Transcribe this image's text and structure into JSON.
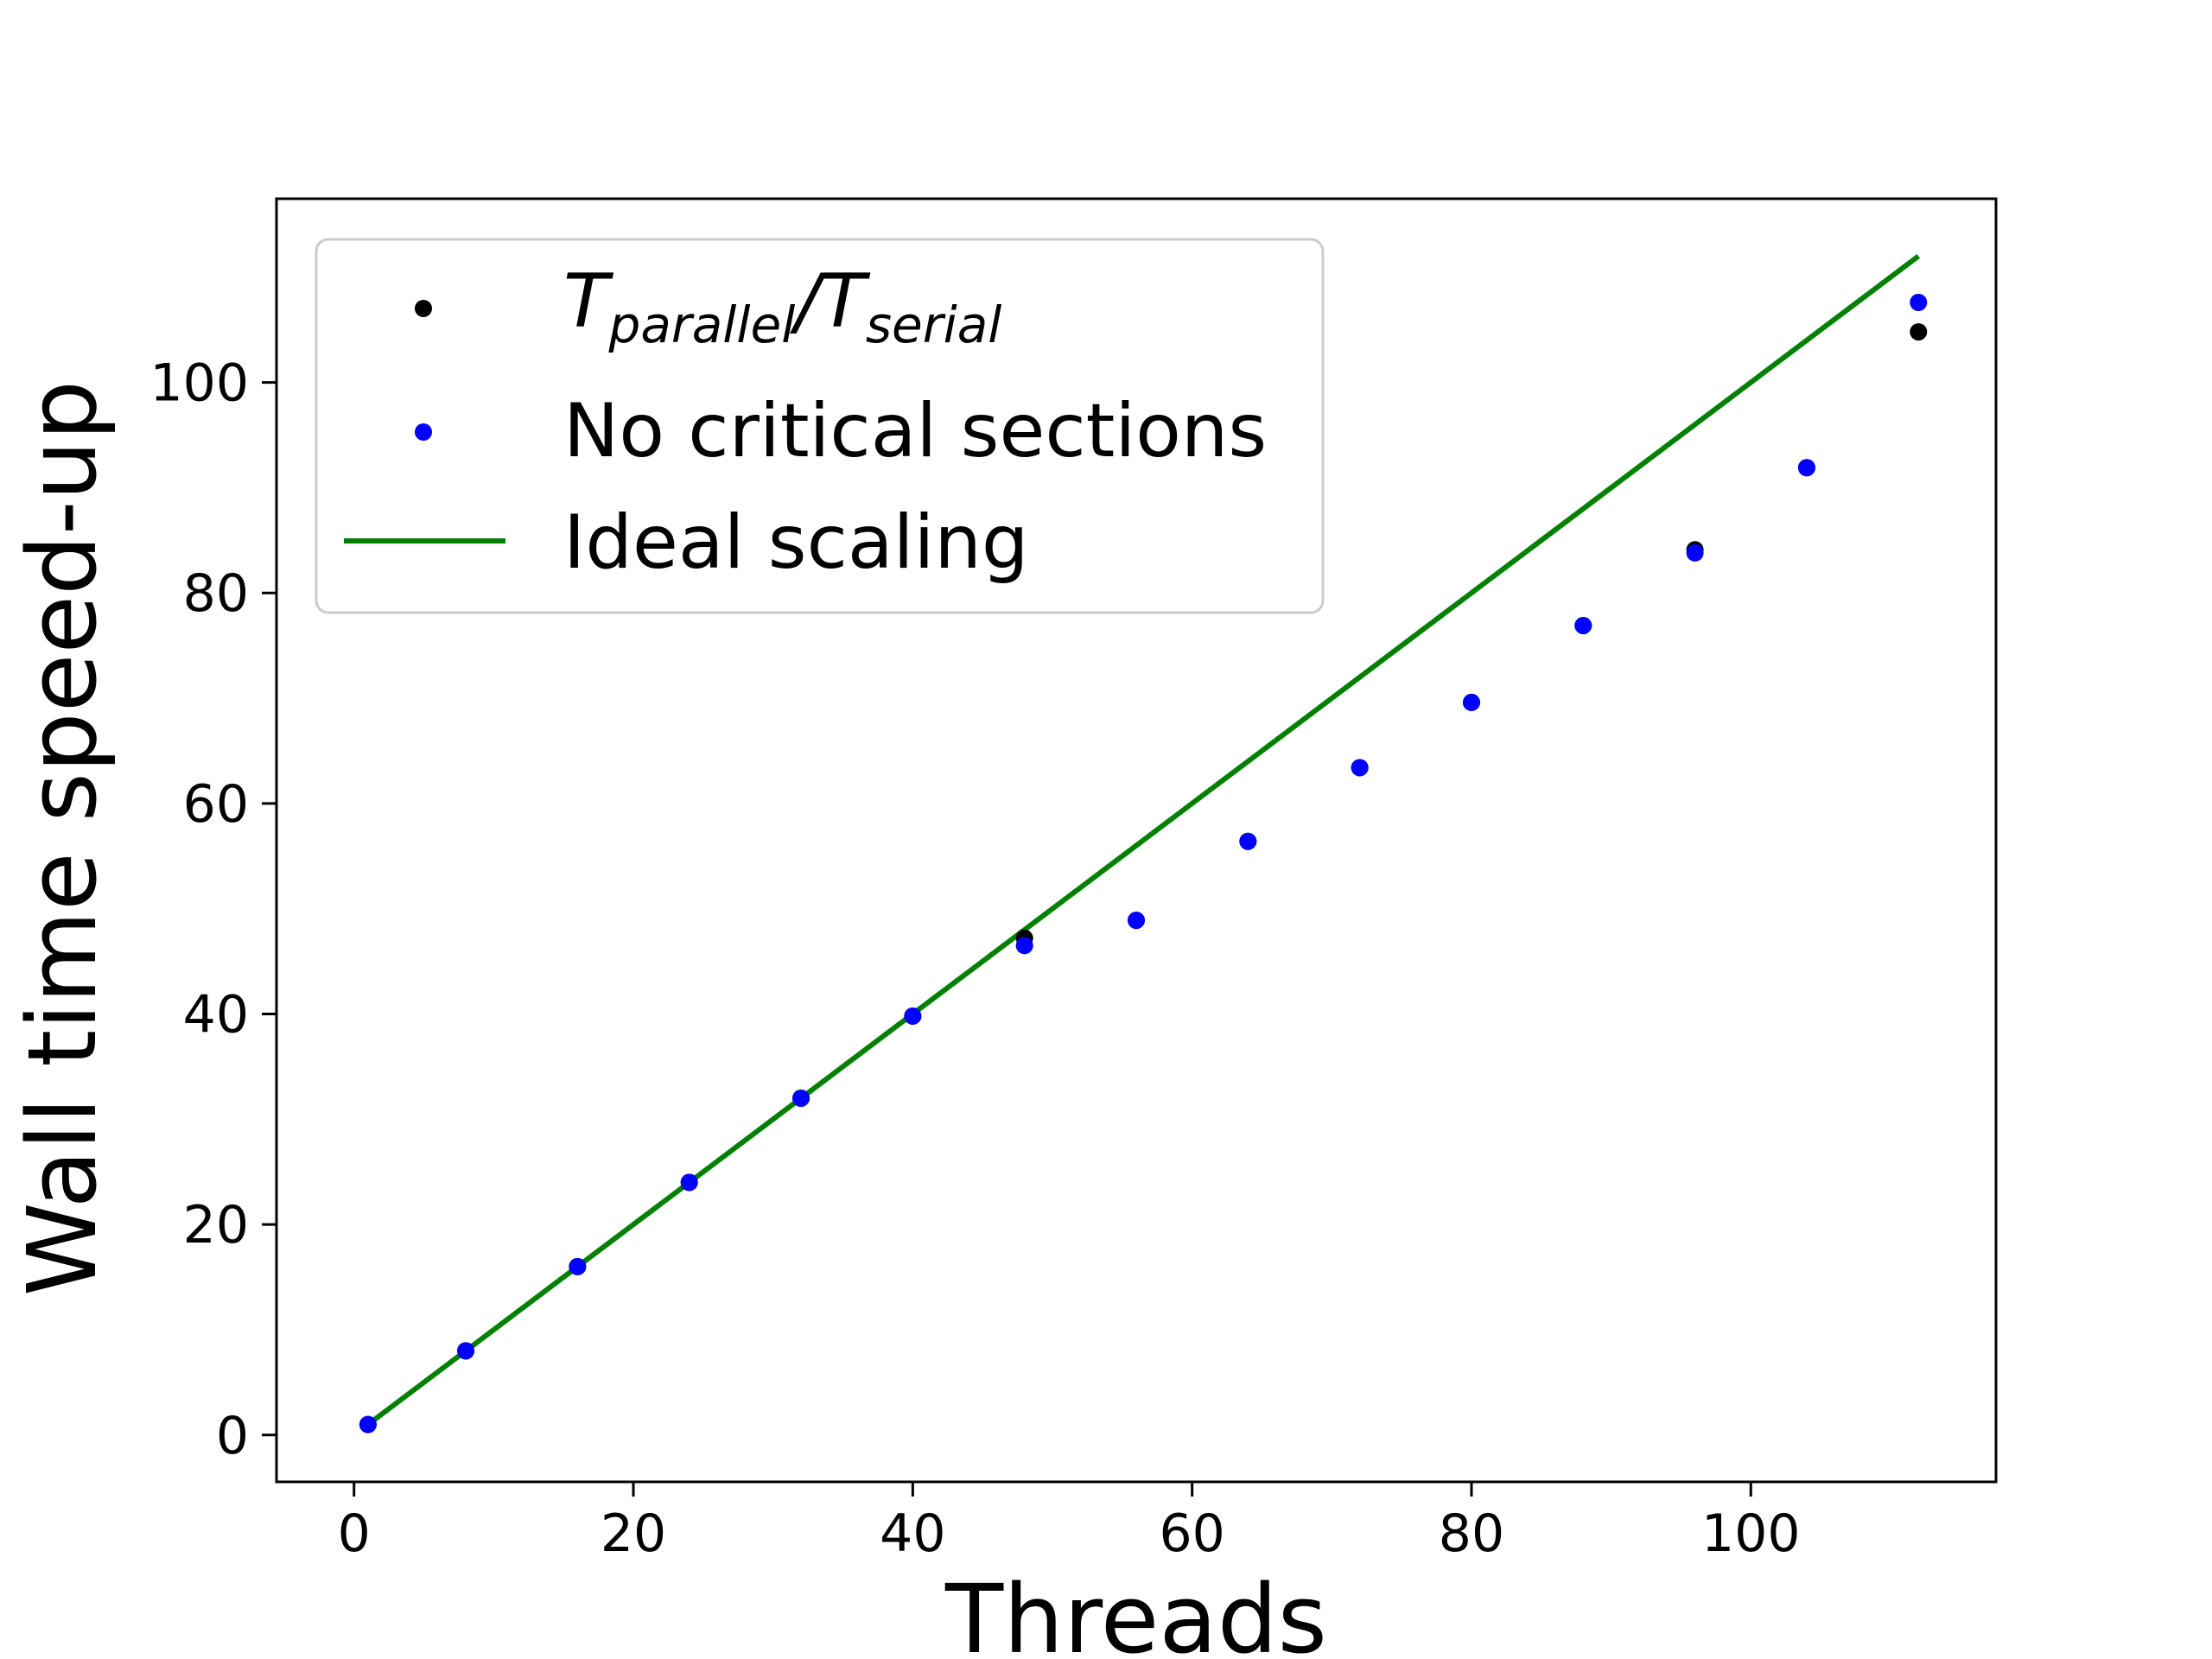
{
  "chart_data": {
    "type": "scatter",
    "xlabel": "Threads",
    "ylabel": "Wall time speed-up",
    "xlim": [
      -5.55,
      117.55
    ],
    "ylim": [
      -4.45,
      117.45
    ],
    "xticks": [
      0,
      20,
      40,
      60,
      80,
      100
    ],
    "yticks": [
      0,
      20,
      40,
      60,
      80,
      100
    ],
    "grid": false,
    "legend_position": "upper-left",
    "series": [
      {
        "name": "T_parallel/T_serial",
        "legend_main_1": "T",
        "legend_sub_1": "parallel",
        "legend_main_2": "/T",
        "legend_sub_2": "serial",
        "kind": "scatter",
        "color": "#000000",
        "x": [
          1,
          8,
          16,
          24,
          32,
          40,
          48,
          56,
          64,
          72,
          80,
          88,
          96,
          104,
          112
        ],
        "y": [
          1.0,
          8.0,
          16.0,
          24.0,
          32.0,
          39.8,
          47.2,
          48.9,
          56.4,
          63.4,
          69.6,
          76.9,
          84.1,
          91.9,
          104.8
        ]
      },
      {
        "name": "No critical sections",
        "kind": "scatter",
        "color": "#0000ff",
        "x": [
          1,
          8,
          16,
          24,
          32,
          40,
          48,
          56,
          64,
          72,
          80,
          88,
          96,
          104,
          112
        ],
        "y": [
          1.0,
          8.0,
          16.0,
          24.0,
          32.0,
          39.8,
          46.5,
          48.9,
          56.4,
          63.4,
          69.6,
          76.9,
          83.8,
          91.9,
          107.6
        ]
      },
      {
        "name": "Ideal scaling",
        "kind": "line",
        "color": "#008000",
        "x": [
          1,
          112
        ],
        "y": [
          1,
          112
        ]
      }
    ]
  }
}
